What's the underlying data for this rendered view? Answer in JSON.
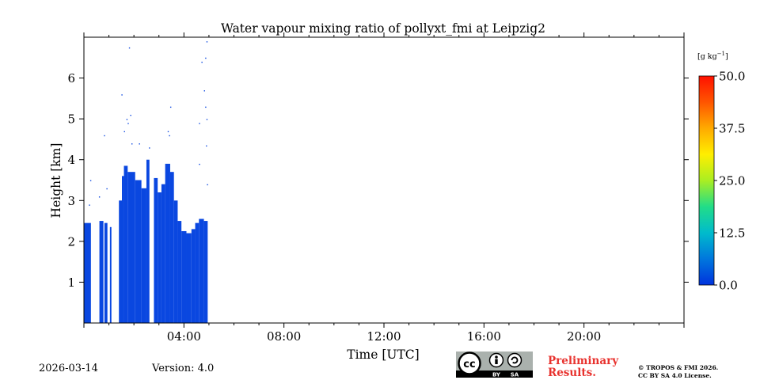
{
  "chart_data": {
    "type": "heatmap",
    "title": "Water vapour mixing ratio of pollyxt_fmi at Leipzig2",
    "xlabel": "Time [UTC]",
    "ylabel": "Height [km]",
    "xlim_hours": [
      0,
      24
    ],
    "ylim_km": [
      0,
      7
    ],
    "x_ticks": [
      {
        "hour": 4,
        "label": "04:00"
      },
      {
        "hour": 8,
        "label": "08:00"
      },
      {
        "hour": 12,
        "label": "12:00"
      },
      {
        "hour": 16,
        "label": "16:00"
      },
      {
        "hour": 20,
        "label": "20:00"
      }
    ],
    "y_ticks": [
      {
        "km": 1,
        "label": "1"
      },
      {
        "km": 2,
        "label": "2"
      },
      {
        "km": 3,
        "label": "3"
      },
      {
        "km": 4,
        "label": "4"
      },
      {
        "km": 5,
        "label": "5"
      },
      {
        "km": 6,
        "label": "6"
      }
    ],
    "colorbar": {
      "unit_label": "[g kg",
      "unit_exponent": "−1",
      "unit_close": "]",
      "min": 0,
      "max": 50,
      "ticks": [
        {
          "value": 0,
          "label": "0.0"
        },
        {
          "value": 12.5,
          "label": "12.5"
        },
        {
          "value": 25,
          "label": "25.0"
        },
        {
          "value": 37.5,
          "label": "37.5"
        },
        {
          "value": 50,
          "label": "50.0"
        }
      ],
      "colors": [
        "#0033dd",
        "#0077dd",
        "#00bbcc",
        "#22dd88",
        "#aaee22",
        "#ffee00",
        "#ffaa00",
        "#ff5500",
        "#ff1100"
      ]
    },
    "data_color": "#0a47e0",
    "coverage": [
      {
        "t0": 0.0,
        "t1": 0.28,
        "top_km": 2.45
      },
      {
        "t0": 0.62,
        "t1": 0.78,
        "top_km": 2.5
      },
      {
        "t0": 0.82,
        "t1": 0.94,
        "top_km": 2.45
      },
      {
        "t0": 1.04,
        "t1": 1.1,
        "top_km": 2.35
      },
      {
        "t0": 1.4,
        "t1": 1.52,
        "top_km": 3.0
      },
      {
        "t0": 1.52,
        "t1": 1.6,
        "top_km": 3.6
      },
      {
        "t0": 1.6,
        "t1": 1.75,
        "top_km": 3.85
      },
      {
        "t0": 1.75,
        "t1": 2.05,
        "top_km": 3.7
      },
      {
        "t0": 2.05,
        "t1": 2.3,
        "top_km": 3.5
      },
      {
        "t0": 2.3,
        "t1": 2.5,
        "top_km": 3.3
      },
      {
        "t0": 2.5,
        "t1": 2.62,
        "top_km": 4.0
      },
      {
        "t0": 2.8,
        "t1": 2.95,
        "top_km": 3.55
      },
      {
        "t0": 2.95,
        "t1": 3.1,
        "top_km": 3.2
      },
      {
        "t0": 3.1,
        "t1": 3.25,
        "top_km": 3.4
      },
      {
        "t0": 3.25,
        "t1": 3.45,
        "top_km": 3.9
      },
      {
        "t0": 3.45,
        "t1": 3.6,
        "top_km": 3.7
      },
      {
        "t0": 3.6,
        "t1": 3.75,
        "top_km": 3.0
      },
      {
        "t0": 3.75,
        "t1": 3.9,
        "top_km": 2.5
      },
      {
        "t0": 3.9,
        "t1": 4.1,
        "top_km": 2.25
      },
      {
        "t0": 4.1,
        "t1": 4.3,
        "top_km": 2.2
      },
      {
        "t0": 4.3,
        "t1": 4.45,
        "top_km": 2.3
      },
      {
        "t0": 4.45,
        "t1": 4.6,
        "top_km": 2.45
      },
      {
        "t0": 4.6,
        "t1": 4.8,
        "top_km": 2.55
      },
      {
        "t0": 4.8,
        "t1": 4.95,
        "top_km": 2.5
      }
    ],
    "scatter_points": [
      {
        "hour": 0.2,
        "km": 2.9
      },
      {
        "hour": 0.25,
        "km": 3.5
      },
      {
        "hour": 0.6,
        "km": 3.1
      },
      {
        "hour": 0.8,
        "km": 4.6
      },
      {
        "hour": 0.9,
        "km": 3.3
      },
      {
        "hour": 1.5,
        "km": 5.6
      },
      {
        "hour": 1.6,
        "km": 4.7
      },
      {
        "hour": 1.7,
        "km": 5.0
      },
      {
        "hour": 1.75,
        "km": 4.9
      },
      {
        "hour": 1.85,
        "km": 5.1
      },
      {
        "hour": 1.9,
        "km": 4.4
      },
      {
        "hour": 1.8,
        "km": 6.75
      },
      {
        "hour": 2.2,
        "km": 4.4
      },
      {
        "hour": 2.6,
        "km": 4.3
      },
      {
        "hour": 3.35,
        "km": 4.7
      },
      {
        "hour": 3.45,
        "km": 5.3
      },
      {
        "hour": 3.4,
        "km": 4.6
      },
      {
        "hour": 4.6,
        "km": 4.9
      },
      {
        "hour": 4.6,
        "km": 3.9
      },
      {
        "hour": 4.7,
        "km": 6.4
      },
      {
        "hour": 4.8,
        "km": 5.7
      },
      {
        "hour": 4.85,
        "km": 5.3
      },
      {
        "hour": 4.9,
        "km": 5.0
      },
      {
        "hour": 4.85,
        "km": 6.5
      },
      {
        "hour": 4.9,
        "km": 6.9
      },
      {
        "hour": 4.88,
        "km": 4.35
      },
      {
        "hour": 4.92,
        "km": 3.4
      }
    ]
  },
  "footer": {
    "date": "2026-03-14",
    "version": "Version: 4.0",
    "license_badge": {
      "cc": "cc",
      "by": "BY",
      "sa": "SA"
    },
    "preliminary_line1": "Preliminary",
    "preliminary_line2": "Results.",
    "copyright_line1": "© TROPOS & FMI 2026.",
    "copyright_line2": "CC BY SA 4.0 License."
  }
}
